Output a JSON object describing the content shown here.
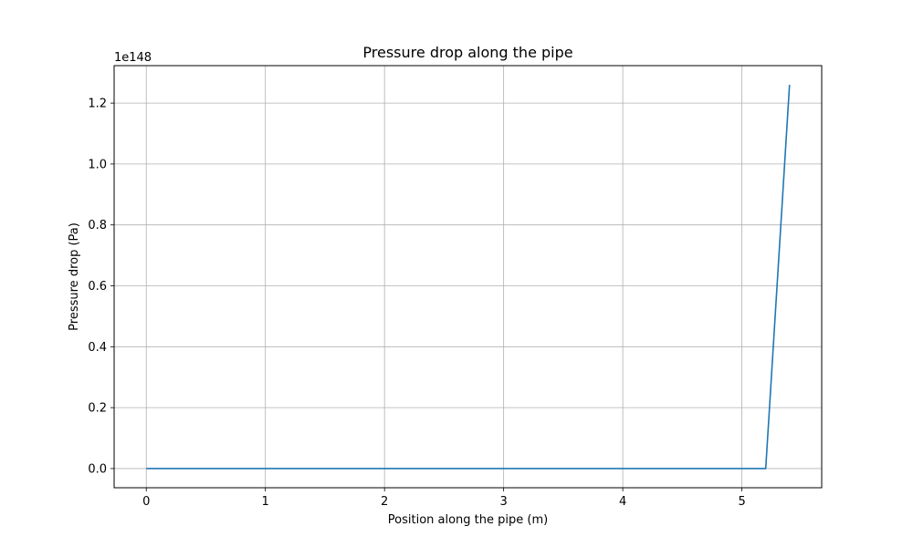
{
  "chart_data": {
    "type": "line",
    "title": "Pressure drop along the pipe",
    "xlabel": "Position along the pipe (m)",
    "ylabel": "Pressure drop (Pa)",
    "y_offset_label": "1e148",
    "xlim": [
      -0.27,
      5.67
    ],
    "ylim": [
      -0.063,
      1.323
    ],
    "xticks": [
      0,
      1,
      2,
      3,
      4,
      5
    ],
    "xtick_labels": [
      "0",
      "1",
      "2",
      "3",
      "4",
      "5"
    ],
    "yticks": [
      0.0,
      0.2,
      0.4,
      0.6,
      0.8,
      1.0,
      1.2
    ],
    "ytick_labels": [
      "0.0",
      "0.2",
      "0.4",
      "0.6",
      "0.8",
      "1.0",
      "1.2"
    ],
    "grid": true,
    "series": [
      {
        "color": "#1f77b4",
        "x": [
          0.0,
          5.2,
          5.4
        ],
        "y": [
          0.0,
          0.0,
          1.26
        ]
      }
    ]
  }
}
